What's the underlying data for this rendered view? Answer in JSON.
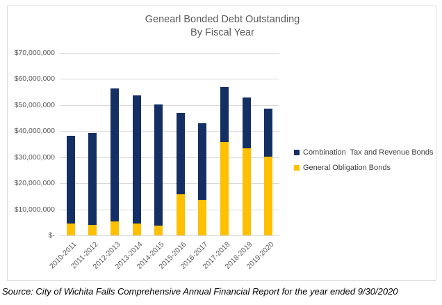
{
  "chart": {
    "title_line1": "Genearl Bonded Debt Outstanding",
    "title_line2": "By Fiscal Year"
  },
  "footer": {
    "source": "Source: City of Wichita Falls Comprehensive Annual Financial Report for the year ended 9/30/2020"
  },
  "colors": {
    "combination_bonds": "#142F63",
    "general_obligation_bonds": "#FFC000",
    "gridline": "#D9D9D9",
    "axis_text": "#595959"
  },
  "chart_data": {
    "type": "bar",
    "stacked": true,
    "title": "Genearl Bonded Debt Outstanding By Fiscal Year",
    "xlabel": "",
    "ylabel": "",
    "ylim": [
      0,
      70000000
    ],
    "grid": true,
    "legend_position": "right",
    "categories": [
      "2010-2011",
      "2011-2012",
      "2012-2013",
      "2013-2014",
      "2014-2015",
      "2015-2016",
      "2016-2017",
      "2017-2018",
      "2018-2019",
      "2019-2020"
    ],
    "series": [
      {
        "name": "Combination  Tax and Revenue Bonds",
        "color": "#142F63",
        "stack_order": "top",
        "values": [
          33500000,
          35200000,
          51000000,
          49000000,
          46500000,
          31200000,
          29500000,
          21100000,
          19400000,
          18200000
        ]
      },
      {
        "name": "General Obligation Bonds",
        "color": "#FFC000",
        "stack_order": "bottom",
        "values": [
          4600000,
          4000000,
          5400000,
          4600000,
          3800000,
          15700000,
          13600000,
          35700000,
          33500000,
          30300000
        ]
      }
    ],
    "totals": [
      38100000,
      39200000,
      56400000,
      53600000,
      50300000,
      46900000,
      43100000,
      56800000,
      52900000,
      48500000
    ],
    "yticks": [
      {
        "label": "$70,000,000",
        "value": 70000000
      },
      {
        "label": "$60,000,000",
        "value": 60000000
      },
      {
        "label": "$50,000,000",
        "value": 50000000
      },
      {
        "label": "$40,000,000",
        "value": 40000000
      },
      {
        "label": "$30,000,000",
        "value": 30000000
      },
      {
        "label": "$20,000,000",
        "value": 20000000
      },
      {
        "label": "$10,000,000",
        "value": 10000000
      },
      {
        "label": "$-",
        "value": 0
      }
    ]
  }
}
